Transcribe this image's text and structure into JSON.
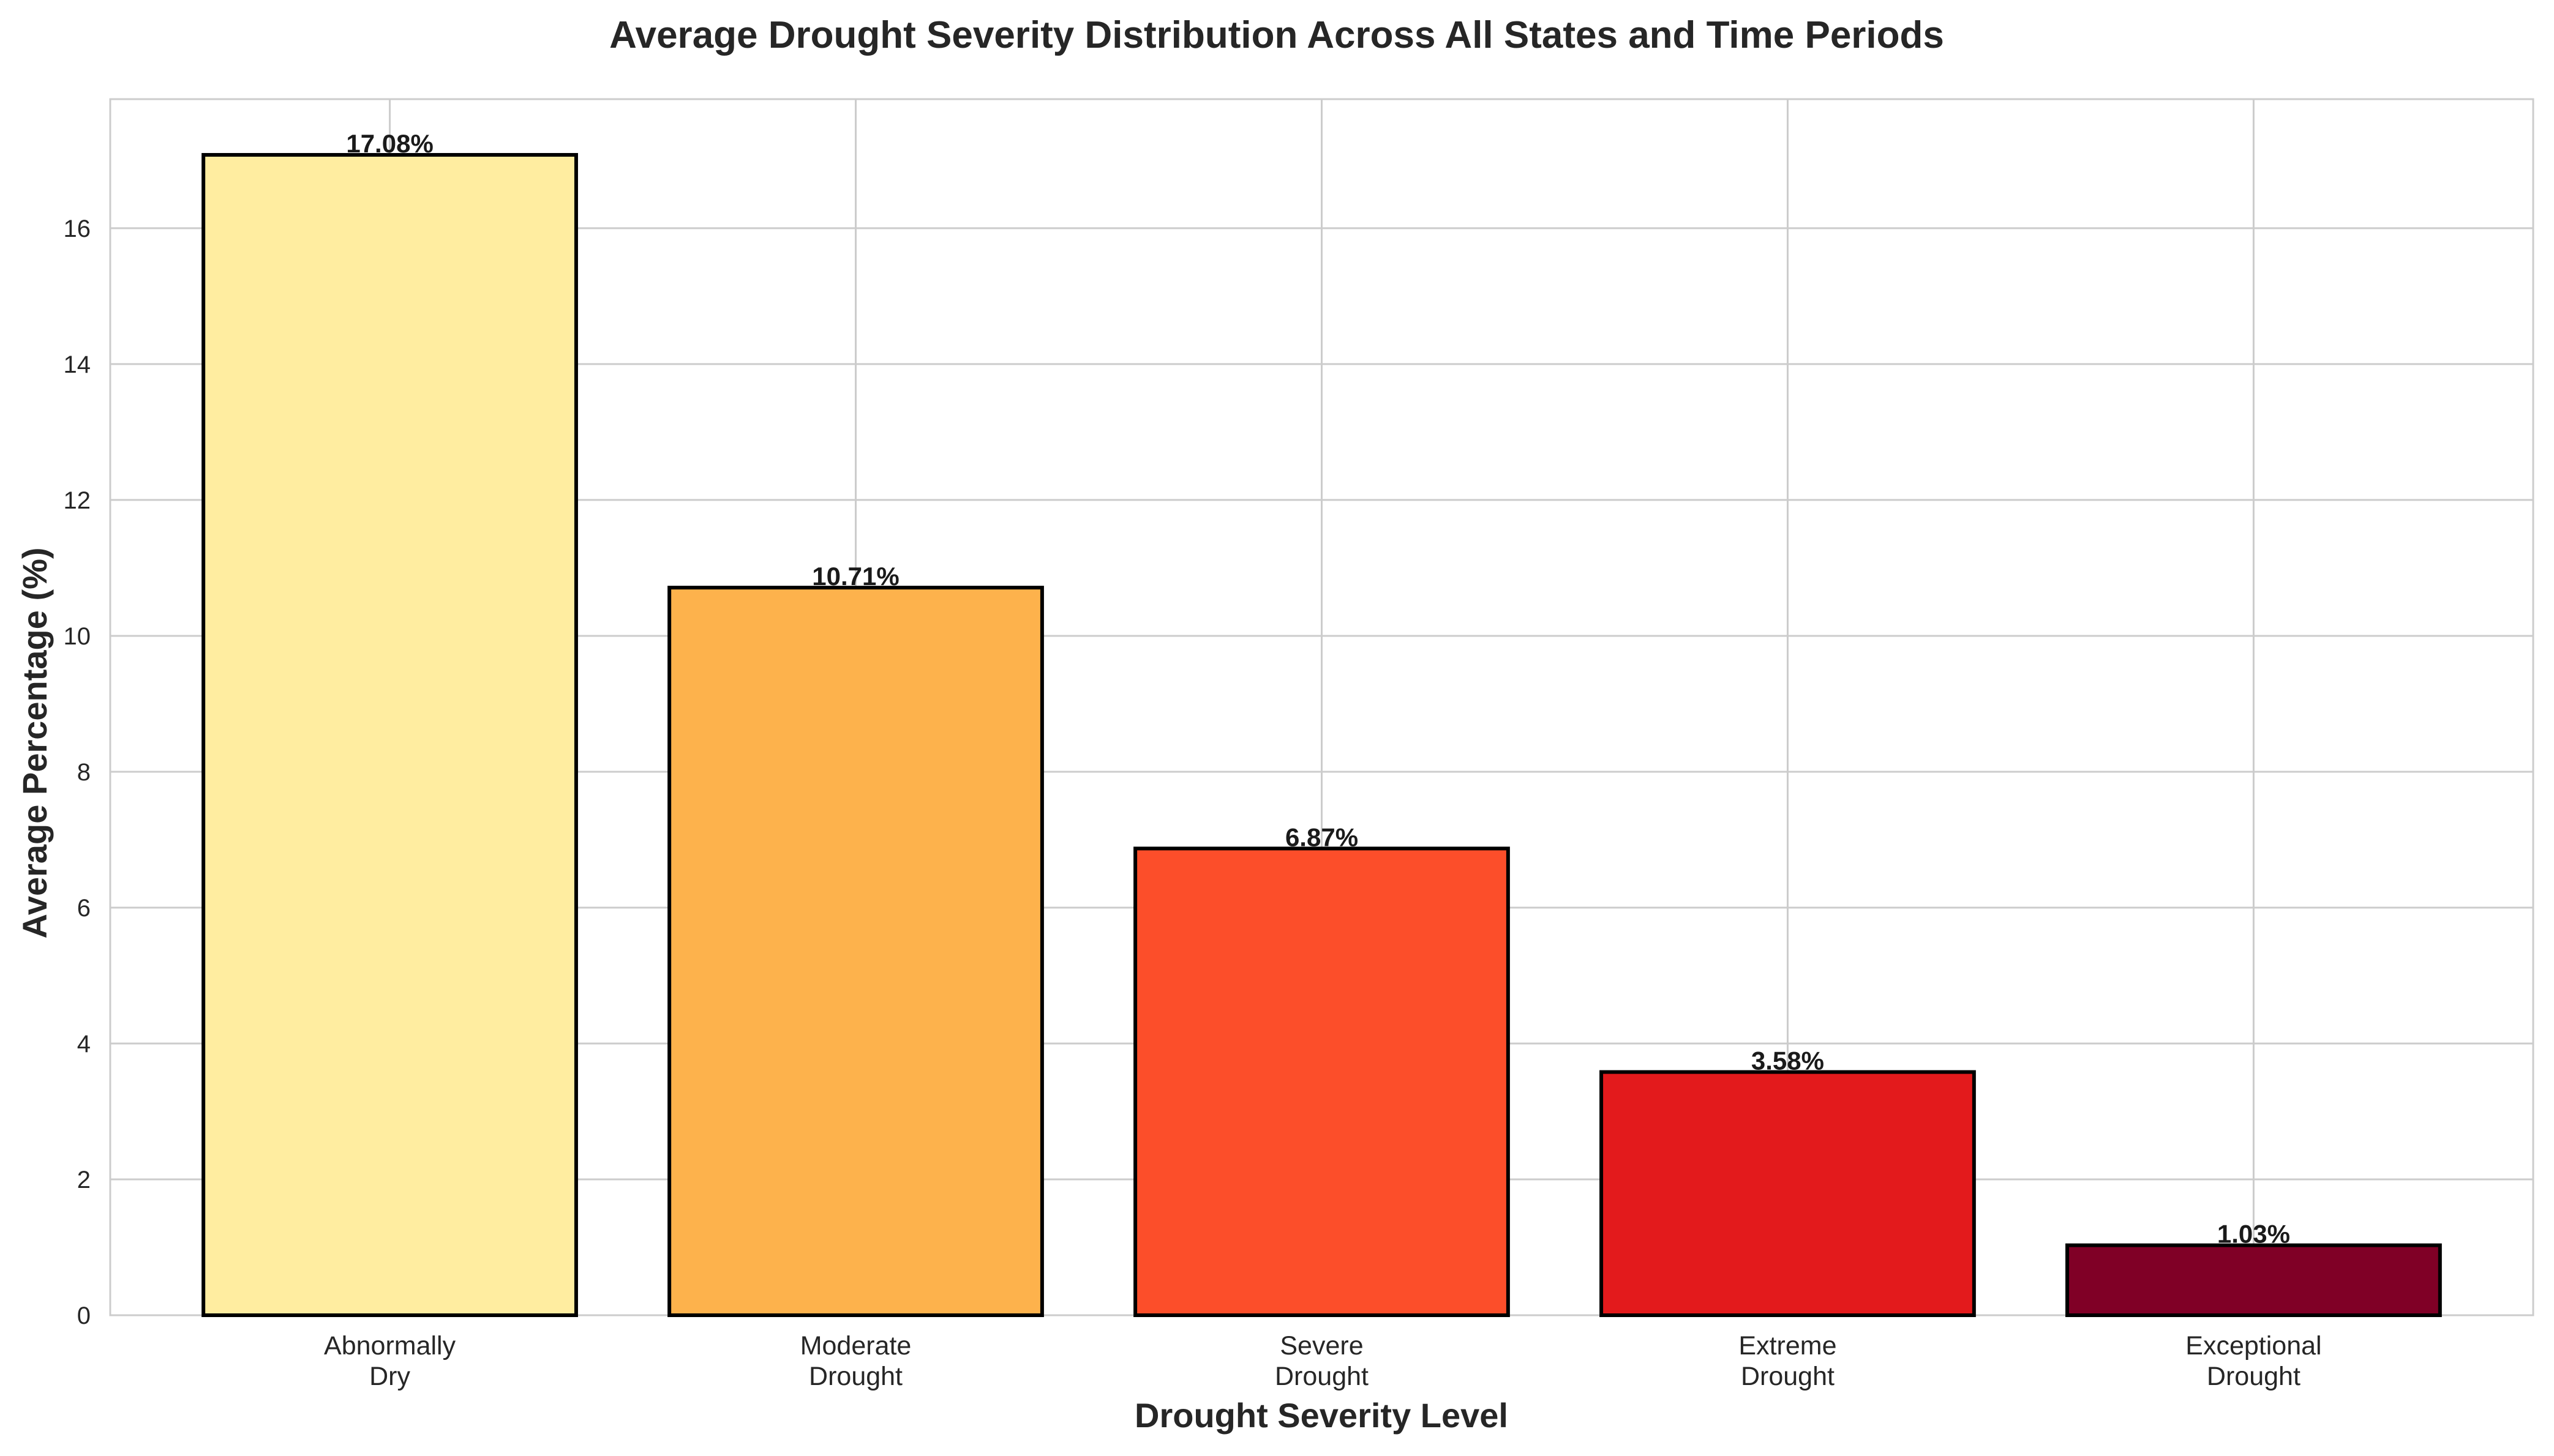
{
  "chart_data": {
    "type": "bar",
    "title": "Average Drought Severity Distribution Across All States and Time Periods",
    "xlabel": "Drought Severity Level",
    "ylabel": "Average Percentage (%)",
    "categories": [
      [
        "Abnormally",
        "Dry"
      ],
      [
        "Moderate",
        "Drought"
      ],
      [
        "Severe",
        "Drought"
      ],
      [
        "Extreme",
        "Drought"
      ],
      [
        "Exceptional",
        "Drought"
      ]
    ],
    "values": [
      17.08,
      10.71,
      6.87,
      3.58,
      1.03
    ],
    "data_labels": [
      "17.08%",
      "10.71%",
      "6.87%",
      "3.58%",
      "1.03%"
    ],
    "colors": [
      "#ffeda0",
      "#fdb24c",
      "#fc4e2a",
      "#e31a1c",
      "#800026"
    ],
    "edge_color": "#000000",
    "ylim": [
      0,
      17.9
    ],
    "yticks": [
      0,
      2,
      4,
      6,
      8,
      10,
      12,
      14,
      16
    ],
    "grid": true
  }
}
